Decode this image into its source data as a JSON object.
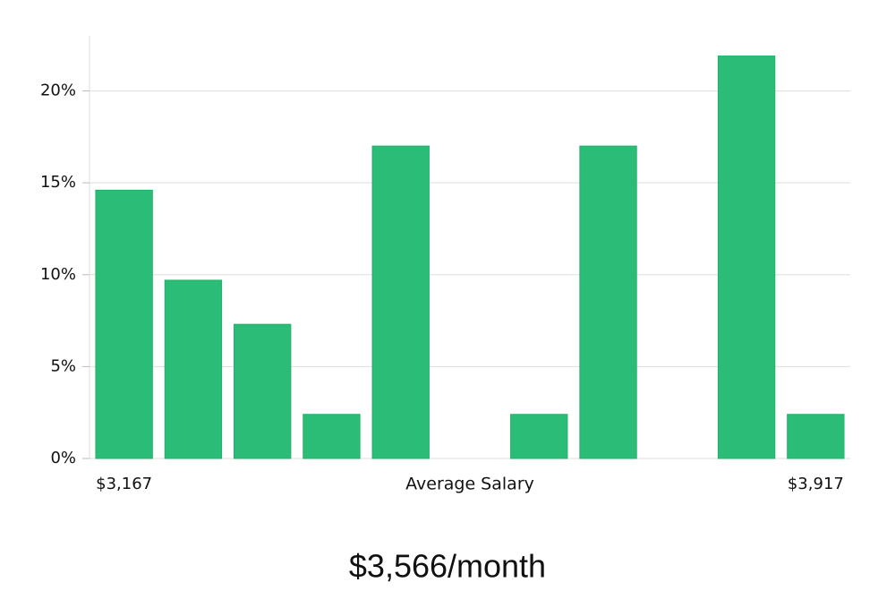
{
  "chart_data": {
    "type": "bar",
    "categories": [
      "$3,167",
      null,
      null,
      null,
      null,
      null,
      null,
      null,
      null,
      null,
      "$3,917"
    ],
    "values": [
      14.6,
      9.7,
      7.3,
      2.4,
      17.0,
      0,
      2.4,
      17.0,
      0,
      21.9,
      2.4
    ],
    "color": "#2bbd77",
    "x_label": "Average Salary",
    "caption": "$3,566/month",
    "ylim": [
      0,
      23
    ],
    "yticks": [
      {
        "value": 0,
        "label": "0%"
      },
      {
        "value": 5,
        "label": "5%"
      },
      {
        "value": 10,
        "label": "10%"
      },
      {
        "value": 15,
        "label": "15%"
      },
      {
        "value": 20,
        "label": "20%"
      }
    ],
    "grid": true
  }
}
